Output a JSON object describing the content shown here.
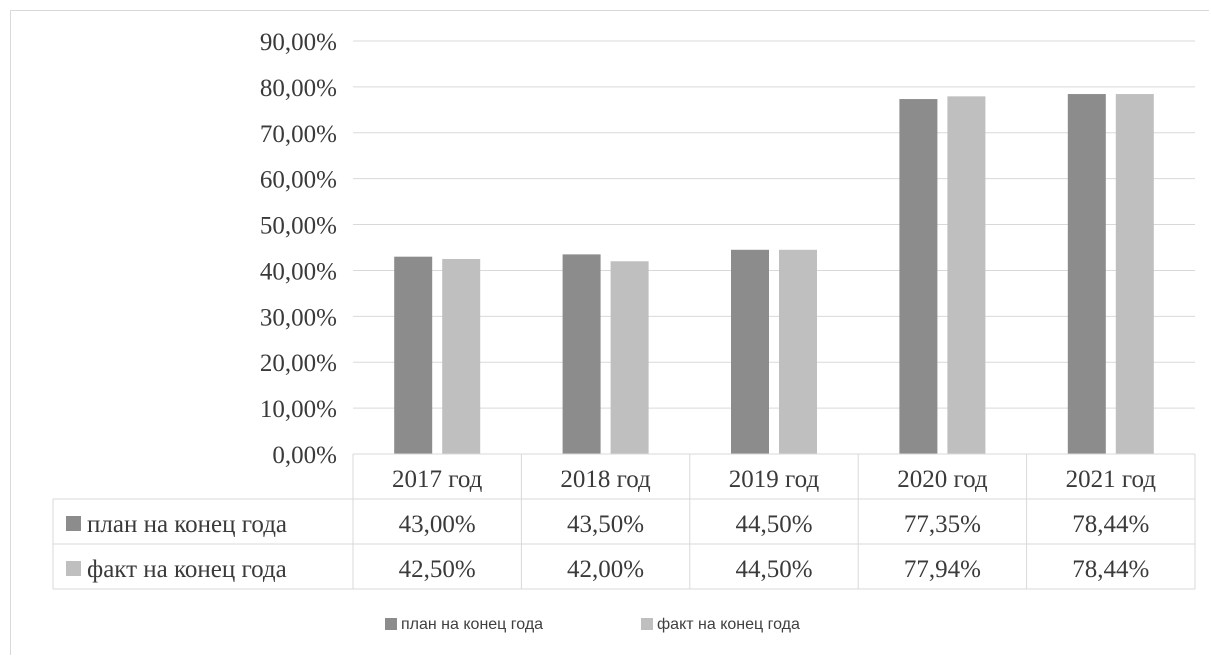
{
  "chart_data": {
    "type": "bar",
    "title": "",
    "xlabel": "",
    "ylabel": "",
    "categories": [
      "2017 год",
      "2018 год",
      "2019 год",
      "2020 год",
      "2021 год"
    ],
    "series": [
      {
        "name": "план на конец года",
        "values": [
          43.0,
          43.5,
          44.5,
          77.35,
          78.44
        ],
        "labels": [
          "43,00%",
          "43,50%",
          "44,50%",
          "77,35%",
          "78,44%"
        ],
        "color": "#8c8c8c"
      },
      {
        "name": "факт на конец года",
        "values": [
          42.5,
          42.0,
          44.5,
          77.94,
          78.44
        ],
        "labels": [
          "42,50%",
          "42,00%",
          "44,50%",
          "77,94%",
          "78,44%"
        ],
        "color": "#bfbfbf"
      }
    ],
    "ylim": [
      0,
      90
    ],
    "yticks": [
      0,
      10,
      20,
      30,
      40,
      50,
      60,
      70,
      80,
      90
    ],
    "ytick_labels": [
      "0,00%",
      "10,00%",
      "20,00%",
      "30,00%",
      "40,00%",
      "50,00%",
      "60,00%",
      "70,00%",
      "80,00%",
      "90,00%"
    ],
    "grid": true,
    "data_table": true,
    "legend_position": "bottom"
  }
}
